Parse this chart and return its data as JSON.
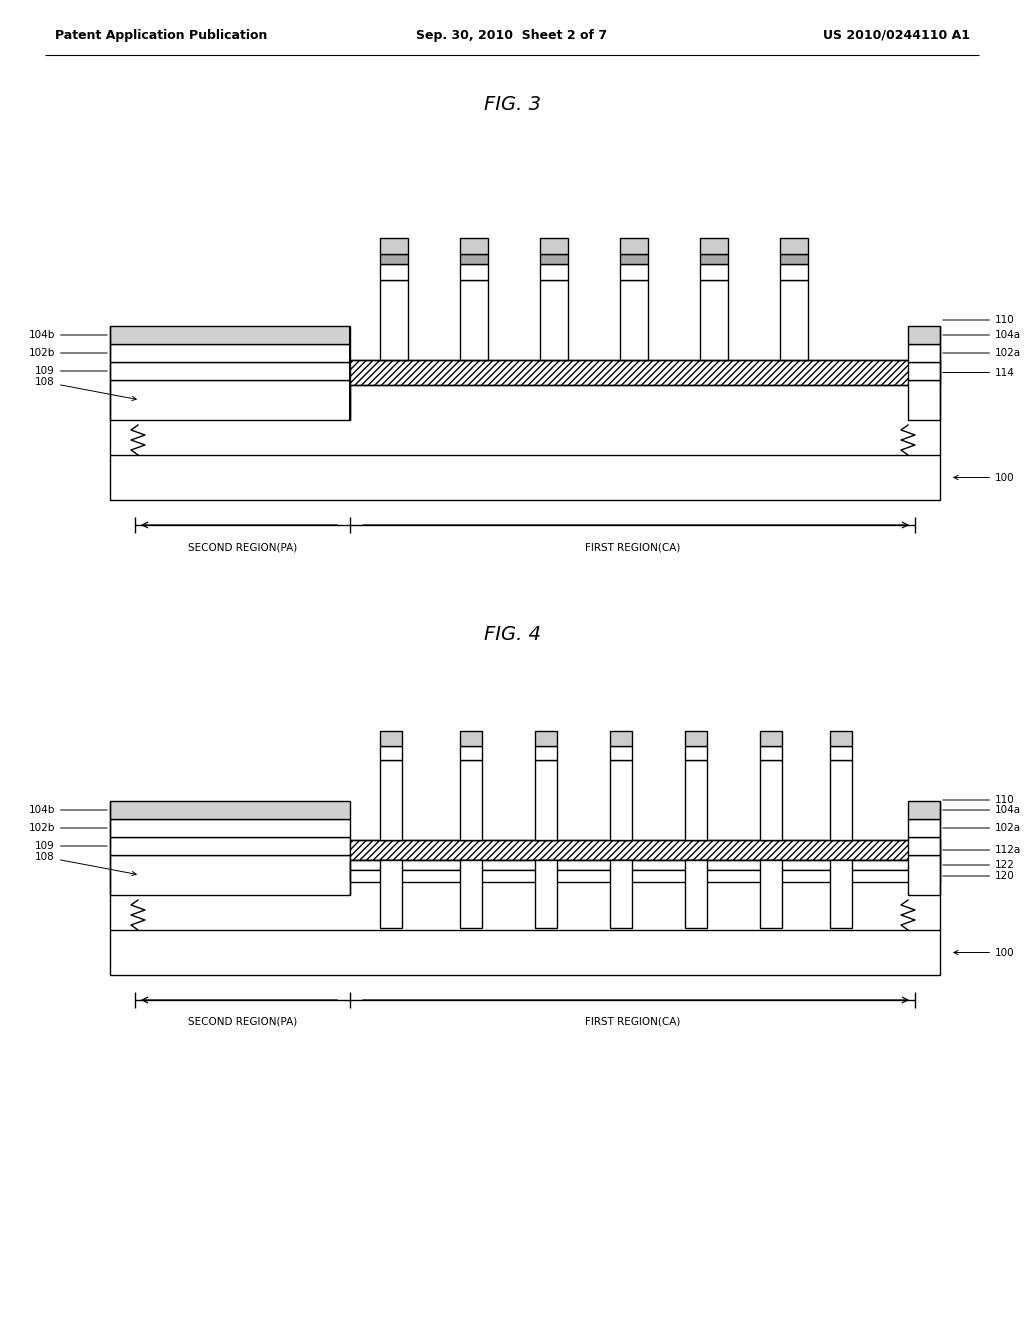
{
  "bg_color": "#ffffff",
  "header_left": "Patent Application Publication",
  "header_mid": "Sep. 30, 2010  Sheet 2 of 7",
  "header_right": "US 2010/0244110 A1",
  "fig3_title": "FIG. 3",
  "fig4_title": "FIG. 4",
  "region_label_second": "SECOND REGION(PA)",
  "region_label_first": "FIRST REGION(CA)",
  "lw": 1.0
}
